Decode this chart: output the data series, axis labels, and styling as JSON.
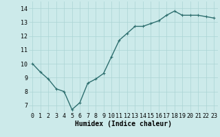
{
  "x": [
    0,
    1,
    2,
    3,
    4,
    5,
    6,
    7,
    8,
    9,
    10,
    11,
    12,
    13,
    14,
    15,
    16,
    17,
    18,
    19,
    20,
    21,
    22,
    23
  ],
  "y": [
    10.0,
    9.4,
    8.9,
    8.2,
    8.0,
    6.7,
    7.2,
    8.6,
    8.9,
    9.3,
    10.5,
    11.7,
    12.2,
    12.7,
    12.7,
    12.9,
    13.1,
    13.5,
    13.8,
    13.5,
    13.5,
    13.5,
    13.4,
    13.3
  ],
  "line_color": "#2d6e6e",
  "marker": "+",
  "marker_size": 3,
  "bg_color": "#cceaea",
  "grid_color": "#aad4d4",
  "xlabel": "Humidex (Indice chaleur)",
  "ylim": [
    6.5,
    14.5
  ],
  "xlim": [
    -0.5,
    23.5
  ],
  "yticks": [
    7,
    8,
    9,
    10,
    11,
    12,
    13,
    14
  ],
  "xticks": [
    0,
    1,
    2,
    3,
    4,
    5,
    6,
    7,
    8,
    9,
    10,
    11,
    12,
    13,
    14,
    15,
    16,
    17,
    18,
    19,
    20,
    21,
    22,
    23
  ],
  "xlabel_fontsize": 7,
  "tick_fontsize": 6,
  "line_width": 1.0
}
